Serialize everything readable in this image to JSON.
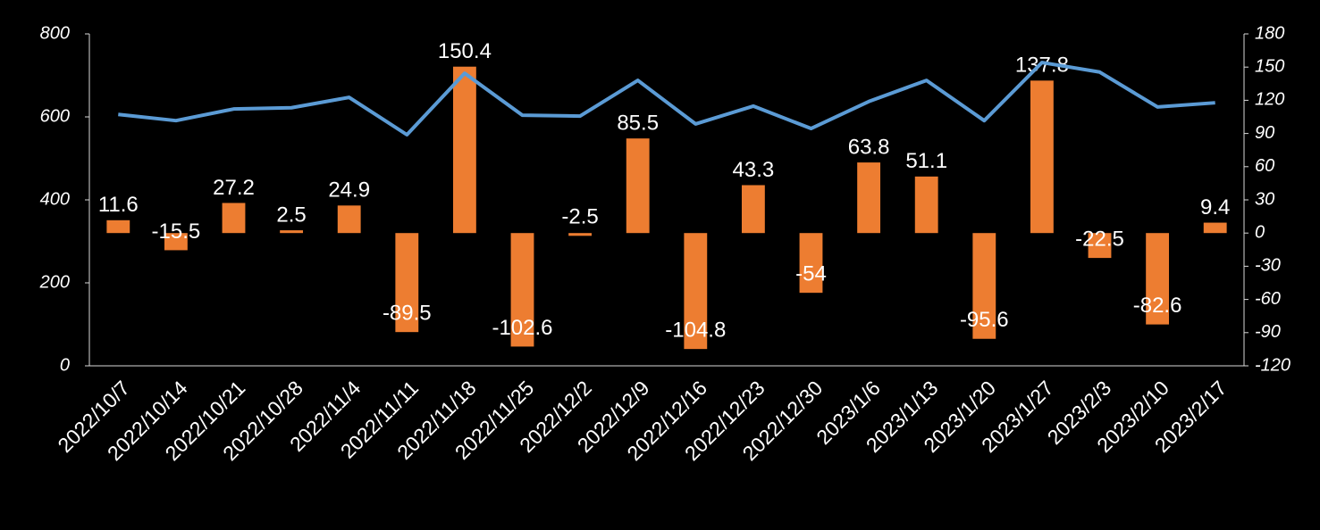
{
  "chart_data": {
    "type": "bar-line",
    "categories": [
      "2022/10/7",
      "2022/10/14",
      "2022/10/21",
      "2022/10/28",
      "2022/11/4",
      "2022/11/11",
      "2022/11/18",
      "2022/11/25",
      "2022/12/2",
      "2022/12/9",
      "2022/12/16",
      "2022/12/23",
      "2022/12/30",
      "2023/1/6",
      "2023/1/13",
      "2023/1/20",
      "2023/1/27",
      "2023/2/3",
      "2023/2/10",
      "2023/2/17"
    ],
    "series": [
      {
        "type": "line",
        "color": "#5b9bd5",
        "values": [
          606,
          591,
          619,
          622,
          647,
          557,
          705,
          604,
          602,
          688,
          583,
          626,
          572,
          637,
          688,
          591,
          731,
          708,
          624,
          634
        ]
      },
      {
        "type": "bar",
        "axis": "y2",
        "color": "#ed7d31",
        "values": [
          11.6,
          -15.5,
          27.2,
          2.5,
          24.9,
          -89.5,
          150.4,
          -102.6,
          -2.5,
          85.5,
          -104.8,
          43.3,
          -54,
          63.8,
          51.1,
          -95.6,
          137.8,
          -22.5,
          -82.6,
          9.4
        ]
      }
    ],
    "ylim": [
      0,
      800
    ],
    "yticks": [
      0,
      200,
      400,
      600,
      800
    ],
    "y2lim": [
      -120,
      180
    ],
    "y2ticks": [
      -120,
      -90,
      -60,
      -30,
      0,
      30,
      60,
      90,
      120,
      150,
      180
    ]
  }
}
